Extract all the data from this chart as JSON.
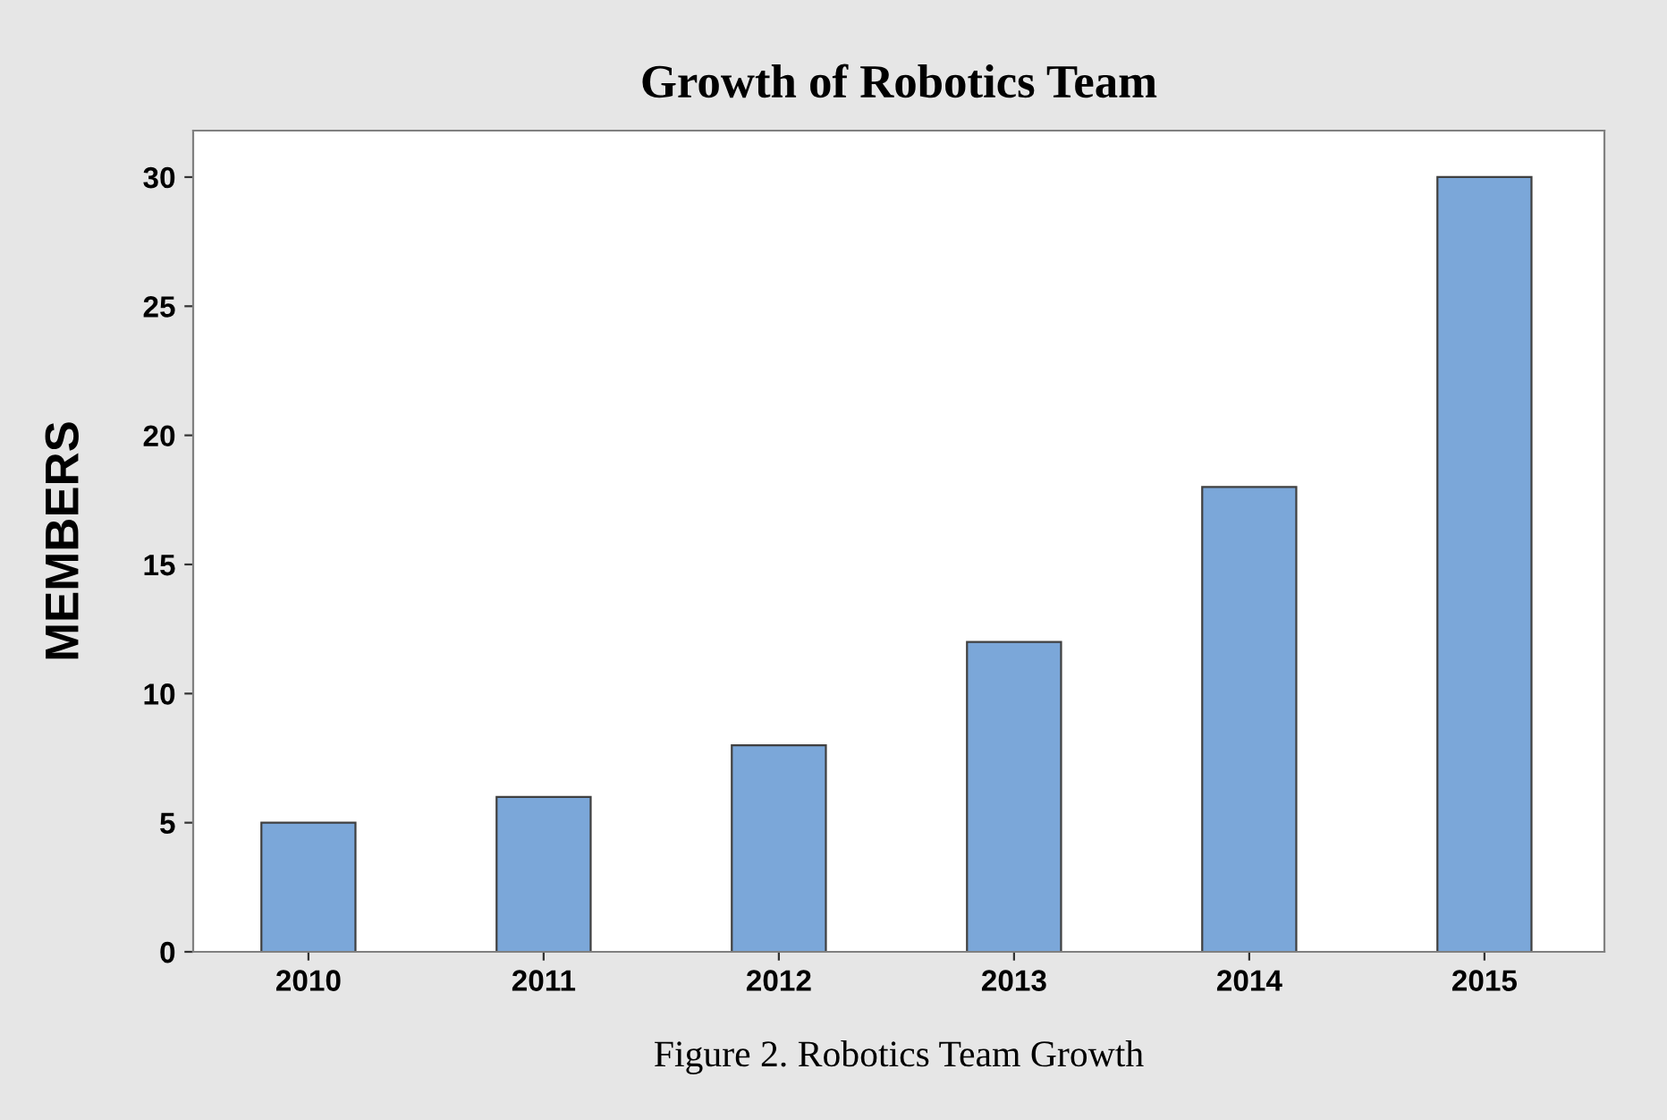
{
  "chart_data": {
    "type": "bar",
    "title": "Growth of Robotics Team",
    "ylabel": "MEMBERS",
    "categories": [
      "2010",
      "2011",
      "2012",
      "2013",
      "2014",
      "2015"
    ],
    "values": [
      5,
      6,
      8,
      12,
      18,
      30
    ],
    "color": "#7ba7d9",
    "ylim": [
      0,
      31.8
    ],
    "yticks": [
      0,
      5,
      10,
      15,
      20,
      25,
      30
    ],
    "grid": false,
    "legend": false,
    "annotations": [
      "Figure 2. Robotics Team Growth"
    ]
  }
}
